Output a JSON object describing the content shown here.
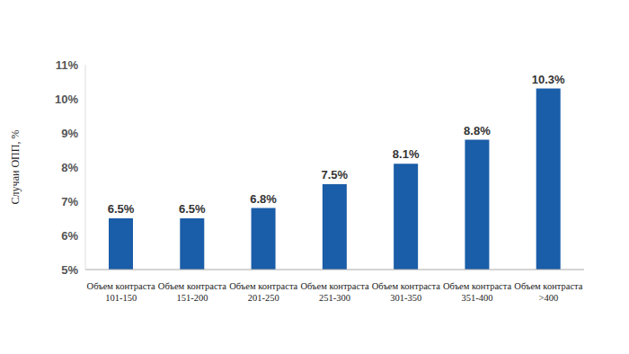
{
  "chart_data": {
    "type": "bar",
    "y_label": "Случаи ОПП, %",
    "categories": [
      "Объем контраста\n101-150",
      "Объем контраста\n151-200",
      "Объем контраста\n201-250",
      "Объем контраста\n251-300",
      "Объем контраста\n301-350",
      "Объем контраста\n351-400",
      "Объем контраста\n>400"
    ],
    "values": [
      6.5,
      6.5,
      6.8,
      7.5,
      8.1,
      8.8,
      10.3
    ],
    "value_labels": [
      "6.5%",
      "6.5%",
      "6.8%",
      "7.5%",
      "8.1%",
      "8.8%",
      "10.3%"
    ],
    "color": "#1a5da8",
    "ylim": [
      5,
      11
    ],
    "yticks": [
      {
        "value": 5,
        "label": "5%"
      },
      {
        "value": 6,
        "label": "6%"
      },
      {
        "value": 7,
        "label": "7%"
      },
      {
        "value": 8,
        "label": "8%"
      },
      {
        "value": 9,
        "label": "9%"
      },
      {
        "value": 10,
        "label": "10%"
      },
      {
        "value": 11,
        "label": "11%"
      }
    ],
    "grid": false,
    "data_labels": true
  }
}
